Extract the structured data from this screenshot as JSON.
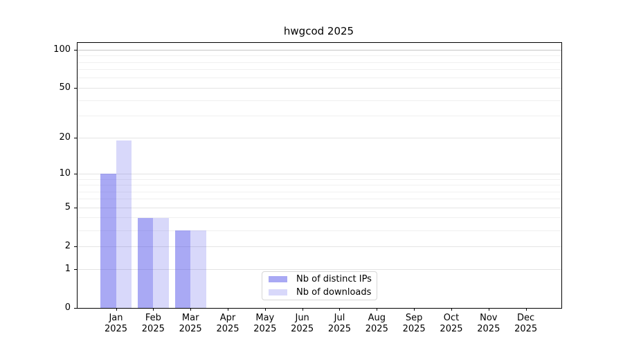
{
  "chart_data": {
    "type": "bar",
    "title": "hwgcod 2025",
    "categories": [
      "Jan 2025",
      "Feb 2025",
      "Mar 2025",
      "Apr 2025",
      "May 2025",
      "Jun 2025",
      "Jul 2025",
      "Aug 2025",
      "Sep 2025",
      "Oct 2025",
      "Nov 2025",
      "Dec 2025"
    ],
    "series": [
      {
        "name": "Nb of distinct IPs",
        "values": [
          10,
          4,
          3,
          0,
          0,
          0,
          0,
          0,
          0,
          0,
          0,
          0
        ],
        "color": "rgba(60,60,230,0.44)",
        "approx_hex": "#a9a9f1"
      },
      {
        "name": "Nb of downloads",
        "values": [
          19,
          4,
          3,
          0,
          0,
          0,
          0,
          0,
          0,
          0,
          0,
          0
        ],
        "color": "rgba(60,60,230,0.20)",
        "approx_hex": "#d8d8f9"
      }
    ],
    "xlabel": "",
    "ylabel": "",
    "y_axis": {
      "scale": "log1p",
      "tick_values": [
        0,
        1,
        2,
        5,
        10,
        20,
        50,
        100
      ],
      "tick_labels": [
        "0",
        "1",
        "2",
        "5",
        "10",
        "20",
        "50",
        "100"
      ],
      "minor_gridline_values": [
        3,
        4,
        6,
        7,
        8,
        9,
        30,
        40,
        60,
        70,
        80,
        90
      ],
      "ylim": [
        0,
        110
      ]
    },
    "grid": true,
    "legend": {
      "position": "lower center",
      "entries": [
        "Nb of distinct IPs",
        "Nb of downloads"
      ]
    },
    "colors": {
      "background": "#ffffff",
      "spine": "#000000",
      "gridline_minor": "#f0f0f0",
      "gridline_major": "#e4e4e4",
      "gridline_top": "#c6c6c6"
    }
  }
}
